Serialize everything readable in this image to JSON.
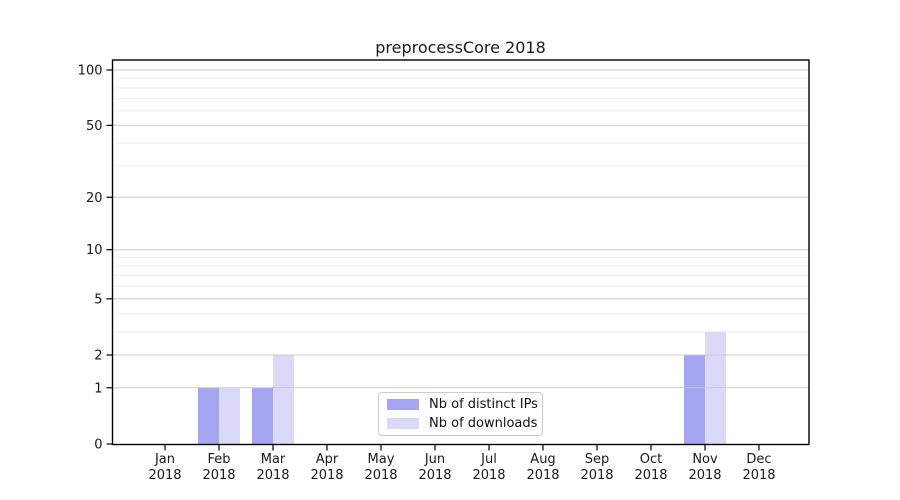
{
  "chart_data": {
    "type": "bar",
    "title": "preprocessCore 2018",
    "categories": [
      "Jan 2018",
      "Feb 2018",
      "Mar 2018",
      "Apr 2018",
      "May 2018",
      "Jun 2018",
      "Jul 2018",
      "Aug 2018",
      "Sep 2018",
      "Oct 2018",
      "Nov 2018",
      "Dec 2018"
    ],
    "series": [
      {
        "name": "Nb of distinct IPs",
        "color": "#a5a5f2",
        "values": [
          0,
          1,
          1,
          0,
          0,
          0,
          0,
          0,
          0,
          0,
          2,
          0
        ]
      },
      {
        "name": "Nb of downloads",
        "color": "#dadaf8",
        "values": [
          0,
          1,
          2,
          0,
          0,
          0,
          0,
          0,
          0,
          0,
          3,
          0
        ]
      }
    ],
    "y_axis": {
      "scale": "log10(1+x)",
      "ticks": [
        0,
        1,
        2,
        5,
        10,
        20,
        50,
        100
      ],
      "minor_ticks": [
        3,
        4,
        6,
        7,
        8,
        9,
        30,
        40,
        60,
        70,
        80,
        90
      ],
      "range_top_value": 112
    },
    "x_axis": {
      "tick_label_format": "month over year, two lines"
    },
    "legend": {
      "position": "inside-bottom-center"
    },
    "grid": "horizontal",
    "colors": {
      "axis": "#000000",
      "major_grid": "#c6c6c6",
      "minor_grid": "#ebebeb",
      "tick_text": "#1a1a1a",
      "background": "#ffffff"
    }
  }
}
